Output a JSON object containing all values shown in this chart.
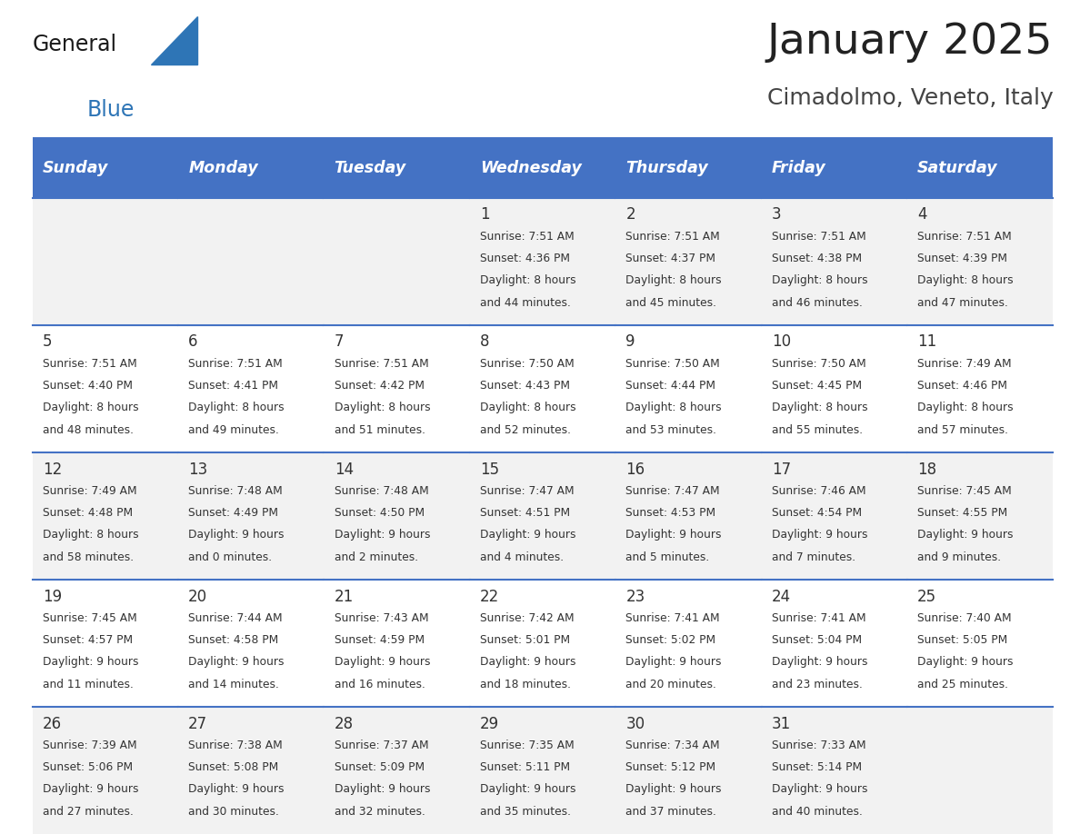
{
  "title": "January 2025",
  "subtitle": "Cimadolmo, Veneto, Italy",
  "days_of_week": [
    "Sunday",
    "Monday",
    "Tuesday",
    "Wednesday",
    "Thursday",
    "Friday",
    "Saturday"
  ],
  "header_bg": "#4472C4",
  "header_text_color": "#FFFFFF",
  "cell_bg_odd": "#F2F2F2",
  "cell_bg_even": "#FFFFFF",
  "cell_text_color": "#333333",
  "row_line_color": "#4472C4",
  "title_color": "#222222",
  "subtitle_color": "#444444",
  "logo_general_color": "#1a1a1a",
  "logo_blue_color": "#2E75B6",
  "calendar_data": [
    [
      {
        "day": null,
        "sunrise": null,
        "sunset": null,
        "daylight": null
      },
      {
        "day": null,
        "sunrise": null,
        "sunset": null,
        "daylight": null
      },
      {
        "day": null,
        "sunrise": null,
        "sunset": null,
        "daylight": null
      },
      {
        "day": 1,
        "sunrise": "7:51 AM",
        "sunset": "4:36 PM",
        "daylight": "8 hours and 44 minutes."
      },
      {
        "day": 2,
        "sunrise": "7:51 AM",
        "sunset": "4:37 PM",
        "daylight": "8 hours and 45 minutes."
      },
      {
        "day": 3,
        "sunrise": "7:51 AM",
        "sunset": "4:38 PM",
        "daylight": "8 hours and 46 minutes."
      },
      {
        "day": 4,
        "sunrise": "7:51 AM",
        "sunset": "4:39 PM",
        "daylight": "8 hours and 47 minutes."
      }
    ],
    [
      {
        "day": 5,
        "sunrise": "7:51 AM",
        "sunset": "4:40 PM",
        "daylight": "8 hours and 48 minutes."
      },
      {
        "day": 6,
        "sunrise": "7:51 AM",
        "sunset": "4:41 PM",
        "daylight": "8 hours and 49 minutes."
      },
      {
        "day": 7,
        "sunrise": "7:51 AM",
        "sunset": "4:42 PM",
        "daylight": "8 hours and 51 minutes."
      },
      {
        "day": 8,
        "sunrise": "7:50 AM",
        "sunset": "4:43 PM",
        "daylight": "8 hours and 52 minutes."
      },
      {
        "day": 9,
        "sunrise": "7:50 AM",
        "sunset": "4:44 PM",
        "daylight": "8 hours and 53 minutes."
      },
      {
        "day": 10,
        "sunrise": "7:50 AM",
        "sunset": "4:45 PM",
        "daylight": "8 hours and 55 minutes."
      },
      {
        "day": 11,
        "sunrise": "7:49 AM",
        "sunset": "4:46 PM",
        "daylight": "8 hours and 57 minutes."
      }
    ],
    [
      {
        "day": 12,
        "sunrise": "7:49 AM",
        "sunset": "4:48 PM",
        "daylight": "8 hours and 58 minutes."
      },
      {
        "day": 13,
        "sunrise": "7:48 AM",
        "sunset": "4:49 PM",
        "daylight": "9 hours and 0 minutes."
      },
      {
        "day": 14,
        "sunrise": "7:48 AM",
        "sunset": "4:50 PM",
        "daylight": "9 hours and 2 minutes."
      },
      {
        "day": 15,
        "sunrise": "7:47 AM",
        "sunset": "4:51 PM",
        "daylight": "9 hours and 4 minutes."
      },
      {
        "day": 16,
        "sunrise": "7:47 AM",
        "sunset": "4:53 PM",
        "daylight": "9 hours and 5 minutes."
      },
      {
        "day": 17,
        "sunrise": "7:46 AM",
        "sunset": "4:54 PM",
        "daylight": "9 hours and 7 minutes."
      },
      {
        "day": 18,
        "sunrise": "7:45 AM",
        "sunset": "4:55 PM",
        "daylight": "9 hours and 9 minutes."
      }
    ],
    [
      {
        "day": 19,
        "sunrise": "7:45 AM",
        "sunset": "4:57 PM",
        "daylight": "9 hours and 11 minutes."
      },
      {
        "day": 20,
        "sunrise": "7:44 AM",
        "sunset": "4:58 PM",
        "daylight": "9 hours and 14 minutes."
      },
      {
        "day": 21,
        "sunrise": "7:43 AM",
        "sunset": "4:59 PM",
        "daylight": "9 hours and 16 minutes."
      },
      {
        "day": 22,
        "sunrise": "7:42 AM",
        "sunset": "5:01 PM",
        "daylight": "9 hours and 18 minutes."
      },
      {
        "day": 23,
        "sunrise": "7:41 AM",
        "sunset": "5:02 PM",
        "daylight": "9 hours and 20 minutes."
      },
      {
        "day": 24,
        "sunrise": "7:41 AM",
        "sunset": "5:04 PM",
        "daylight": "9 hours and 23 minutes."
      },
      {
        "day": 25,
        "sunrise": "7:40 AM",
        "sunset": "5:05 PM",
        "daylight": "9 hours and 25 minutes."
      }
    ],
    [
      {
        "day": 26,
        "sunrise": "7:39 AM",
        "sunset": "5:06 PM",
        "daylight": "9 hours and 27 minutes."
      },
      {
        "day": 27,
        "sunrise": "7:38 AM",
        "sunset": "5:08 PM",
        "daylight": "9 hours and 30 minutes."
      },
      {
        "day": 28,
        "sunrise": "7:37 AM",
        "sunset": "5:09 PM",
        "daylight": "9 hours and 32 minutes."
      },
      {
        "day": 29,
        "sunrise": "7:35 AM",
        "sunset": "5:11 PM",
        "daylight": "9 hours and 35 minutes."
      },
      {
        "day": 30,
        "sunrise": "7:34 AM",
        "sunset": "5:12 PM",
        "daylight": "9 hours and 37 minutes."
      },
      {
        "day": 31,
        "sunrise": "7:33 AM",
        "sunset": "5:14 PM",
        "daylight": "9 hours and 40 minutes."
      },
      {
        "day": null,
        "sunrise": null,
        "sunset": null,
        "daylight": null
      }
    ]
  ]
}
